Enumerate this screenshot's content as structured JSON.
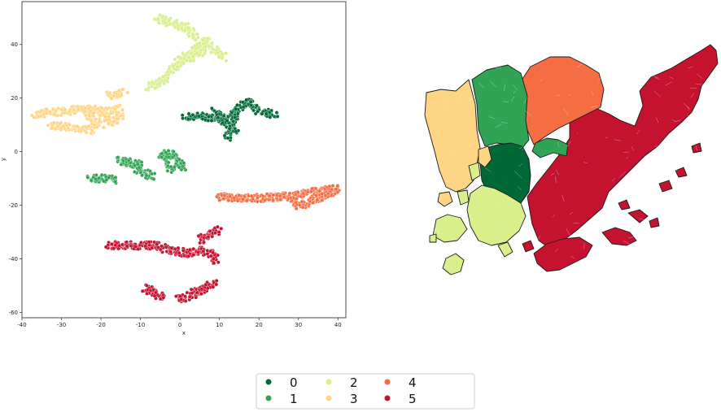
{
  "chart_data": [
    {
      "type": "scatter",
      "title": "",
      "xlabel": "x",
      "ylabel": "y",
      "xlim": [
        -40,
        42
      ],
      "ylim": [
        -62,
        56
      ],
      "xticks": [
        -40,
        -30,
        -20,
        -10,
        0,
        10,
        20,
        30,
        40
      ],
      "yticks": [
        -60,
        -40,
        -20,
        0,
        20,
        40
      ],
      "grid": false,
      "series": [
        {
          "name": "0",
          "color": "#006837",
          "strokes": [
            [
              [
                1,
                13
              ],
              [
                6,
                13
              ],
              [
                10,
                12.5
              ],
              [
                14,
                14
              ]
            ],
            [
              [
                14,
                14
              ],
              [
                17,
                19
              ],
              [
                20,
                15
              ],
              [
                24,
                14
              ]
            ],
            [
              [
                14,
                14
              ],
              [
                13,
                9
              ],
              [
                12,
                5
              ]
            ],
            [
              [
                9,
                15
              ],
              [
                11,
                11
              ],
              [
                14,
                8
              ]
            ]
          ]
        },
        {
          "name": "1",
          "color": "#31a354",
          "strokes": [
            [
              [
                -23,
                -10
              ],
              [
                -19,
                -10
              ],
              [
                -16,
                -11
              ]
            ],
            [
              [
                -16,
                -3
              ],
              [
                -13,
                -4
              ],
              [
                -10,
                -5
              ]
            ],
            [
              [
                -11,
                -6
              ],
              [
                -9,
                -8
              ],
              [
                -7,
                -9
              ]
            ],
            [
              [
                -5,
                -2
              ],
              [
                -3,
                0
              ],
              [
                -1,
                -3
              ],
              [
                1,
                -6
              ]
            ],
            [
              [
                -4,
                -1
              ],
              [
                -3,
                -4
              ],
              [
                -2,
                -7
              ]
            ]
          ]
        },
        {
          "name": "2",
          "color": "#d9ef8b",
          "strokes": [
            [
              [
                -8,
                24
              ],
              [
                -5,
                26
              ],
              [
                -3,
                28
              ]
            ],
            [
              [
                -3,
                29
              ],
              [
                0,
                34
              ],
              [
                3,
                37
              ],
              [
                6,
                40
              ]
            ],
            [
              [
                6,
                42
              ],
              [
                8,
                39
              ],
              [
                10,
                37
              ],
              [
                11,
                35
              ]
            ],
            [
              [
                -6,
                50
              ],
              [
                -2,
                48
              ],
              [
                2,
                46
              ],
              [
                4,
                43
              ]
            ],
            [
              [
                2,
                34
              ],
              [
                4,
                36
              ],
              [
                6,
                38
              ]
            ]
          ]
        },
        {
          "name": "3",
          "color": "#fdd585",
          "strokes": [
            [
              [
                -37,
                14
              ],
              [
                -30,
                15
              ],
              [
                -24,
                16
              ],
              [
                -19,
                15
              ],
              [
                -15,
                16
              ]
            ],
            [
              [
                -33,
                10
              ],
              [
                -27,
                9
              ],
              [
                -22,
                8
              ]
            ],
            [
              [
                -18,
                21
              ],
              [
                -15,
                22
              ],
              [
                -14,
                22
              ]
            ],
            [
              [
                -21,
                16
              ],
              [
                -19,
                13
              ],
              [
                -17,
                11
              ],
              [
                -15,
                13
              ]
            ],
            [
              [
                -24,
                15
              ],
              [
                -21,
                11
              ],
              [
                -20,
                10
              ]
            ]
          ]
        },
        {
          "name": "4",
          "color": "#f46d43",
          "strokes": [
            [
              [
                10,
                -17
              ],
              [
                18,
                -17.5
              ],
              [
                25,
                -17
              ],
              [
                30,
                -16
              ]
            ],
            [
              [
                30,
                -16
              ],
              [
                34,
                -15
              ],
              [
                38,
                -14
              ],
              [
                40,
                -14
              ]
            ],
            [
              [
                28,
                -17
              ],
              [
                30,
                -20
              ],
              [
                33,
                -19
              ],
              [
                36,
                -17
              ],
              [
                39,
                -15
              ]
            ]
          ]
        },
        {
          "name": "5",
          "color": "#c4122f",
          "strokes": [
            [
              [
                -18,
                -35
              ],
              [
                -12,
                -35
              ],
              [
                -6,
                -35
              ],
              [
                -2,
                -37
              ],
              [
                2,
                -38
              ]
            ],
            [
              [
                2,
                -38
              ],
              [
                5,
                -37
              ],
              [
                8,
                -38
              ],
              [
                9,
                -41
              ]
            ],
            [
              [
                5,
                -33
              ],
              [
                7,
                -31
              ],
              [
                9,
                -30
              ],
              [
                10,
                -29
              ]
            ],
            [
              [
                -9,
                -51
              ],
              [
                -6,
                -53
              ],
              [
                -4,
                -55
              ]
            ],
            [
              [
                -1,
                -55
              ],
              [
                2,
                -54
              ],
              [
                6,
                -51
              ],
              [
                9,
                -49
              ]
            ]
          ]
        }
      ]
    },
    {
      "type": "map",
      "title": "",
      "regions": [
        {
          "cluster": "3",
          "color": "#fdd585"
        },
        {
          "cluster": "1",
          "color": "#31a354"
        },
        {
          "cluster": "4",
          "color": "#f46d43"
        },
        {
          "cluster": "0",
          "color": "#006837"
        },
        {
          "cluster": "2",
          "color": "#d9ef8b"
        },
        {
          "cluster": "5",
          "color": "#c4122f"
        }
      ]
    }
  ],
  "legend": {
    "placement": "bottom-center",
    "items": [
      {
        "label": "0",
        "color": "#006837"
      },
      {
        "label": "1",
        "color": "#31a354"
      },
      {
        "label": "2",
        "color": "#d9ef8b"
      },
      {
        "label": "3",
        "color": "#fdd585"
      },
      {
        "label": "4",
        "color": "#f46d43"
      },
      {
        "label": "5",
        "color": "#c4122f"
      }
    ]
  }
}
